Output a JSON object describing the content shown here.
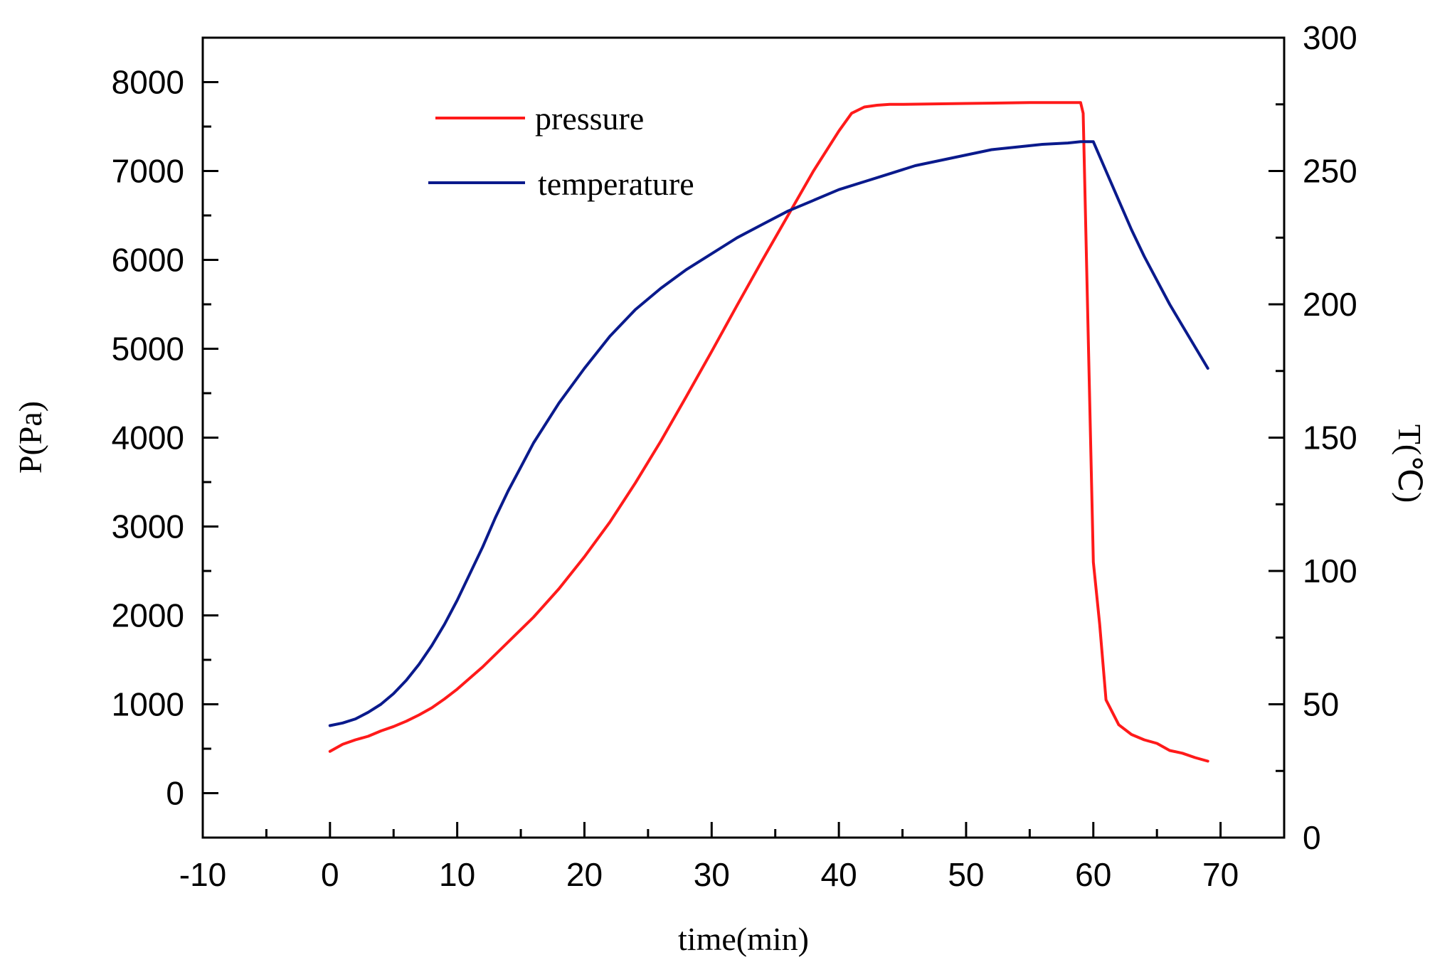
{
  "chart_data": {
    "type": "line",
    "xlabel": "time(min)",
    "ylabel_left": "P(Pa)",
    "ylabel_right": "T(℃)",
    "xlim": [
      -10,
      75
    ],
    "ylim_left": [
      -500,
      8500
    ],
    "ylim_right": [
      0,
      300
    ],
    "x_ticks": [
      -10,
      0,
      10,
      20,
      30,
      40,
      50,
      60,
      70
    ],
    "y_ticks_left": [
      0,
      1000,
      2000,
      3000,
      4000,
      5000,
      6000,
      7000,
      8000
    ],
    "y_ticks_right": [
      0,
      50,
      100,
      150,
      200,
      250,
      300
    ],
    "grid": false,
    "legend_position": "top-left",
    "colors": {
      "pressure": "#ff1a1a",
      "temperature": "#0a1a8c"
    },
    "series": [
      {
        "name": "pressure",
        "axis": "left",
        "x": [
          0,
          1,
          2,
          3,
          4,
          5,
          6,
          7,
          8,
          9,
          10,
          12,
          14,
          16,
          18,
          20,
          22,
          24,
          26,
          28,
          30,
          32,
          34,
          36,
          38,
          40,
          41,
          42,
          43,
          44,
          45,
          50,
          55,
          59,
          59.2,
          60,
          60.5,
          61,
          62,
          63,
          64,
          65,
          66,
          67,
          68,
          69
        ],
        "values": [
          470,
          550,
          600,
          640,
          700,
          750,
          810,
          880,
          960,
          1060,
          1170,
          1420,
          1700,
          1980,
          2300,
          2660,
          3050,
          3490,
          3960,
          4460,
          4970,
          5490,
          6000,
          6500,
          7000,
          7450,
          7650,
          7720,
          7740,
          7750,
          7750,
          7760,
          7770,
          7770,
          7650,
          2600,
          1900,
          1050,
          770,
          660,
          600,
          560,
          480,
          450,
          400,
          360
        ]
      },
      {
        "name": "temperature",
        "axis": "right",
        "x": [
          0,
          1,
          2,
          3,
          4,
          5,
          6,
          7,
          8,
          9,
          10,
          11,
          12,
          13,
          14,
          15,
          16,
          18,
          20,
          22,
          24,
          26,
          28,
          30,
          32,
          34,
          36,
          38,
          40,
          42,
          44,
          46,
          48,
          50,
          52,
          54,
          56,
          58,
          59,
          60,
          61,
          62,
          63,
          64,
          65,
          66,
          67,
          68,
          69
        ],
        "values": [
          42,
          43,
          44.5,
          47,
          50,
          54,
          59,
          65,
          72,
          80,
          89,
          99,
          109,
          120,
          130,
          139,
          148,
          163,
          176,
          188,
          198,
          206,
          213,
          219,
          225,
          230,
          235,
          239,
          243,
          246,
          249,
          252,
          254,
          256,
          258,
          259,
          260,
          260.5,
          261,
          261,
          250,
          239,
          228,
          218,
          209,
          200,
          192,
          184,
          176
        ]
      }
    ]
  }
}
